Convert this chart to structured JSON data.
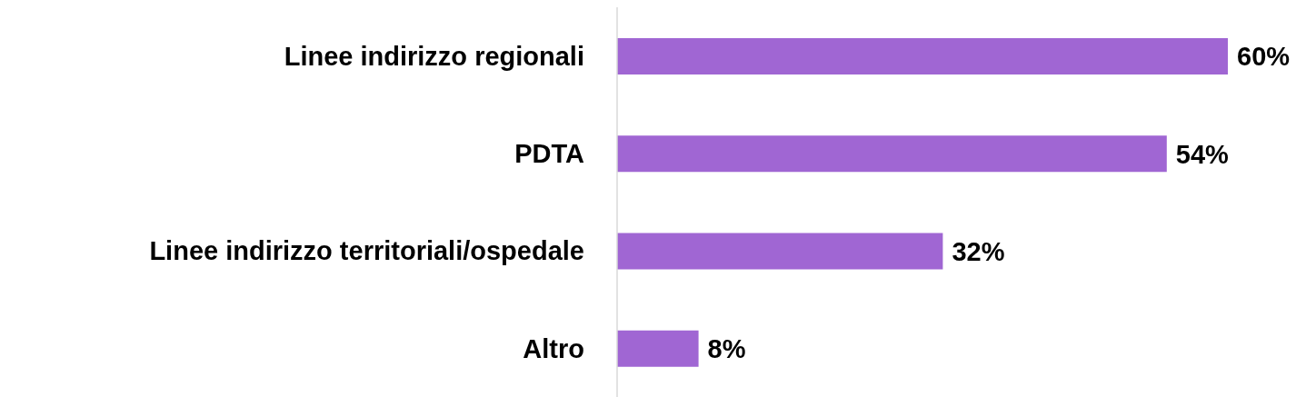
{
  "chart_data": {
    "type": "bar",
    "orientation": "horizontal",
    "categories": [
      "Linee indirizzo regionali",
      "PDTA",
      "Linee indirizzo territoriali/ospedale",
      "Altro"
    ],
    "values": [
      60,
      54,
      32,
      8
    ],
    "value_labels": [
      "60%",
      "54%",
      "32%",
      "8%"
    ],
    "color": "#a066d3",
    "grid": false,
    "legend": false
  }
}
